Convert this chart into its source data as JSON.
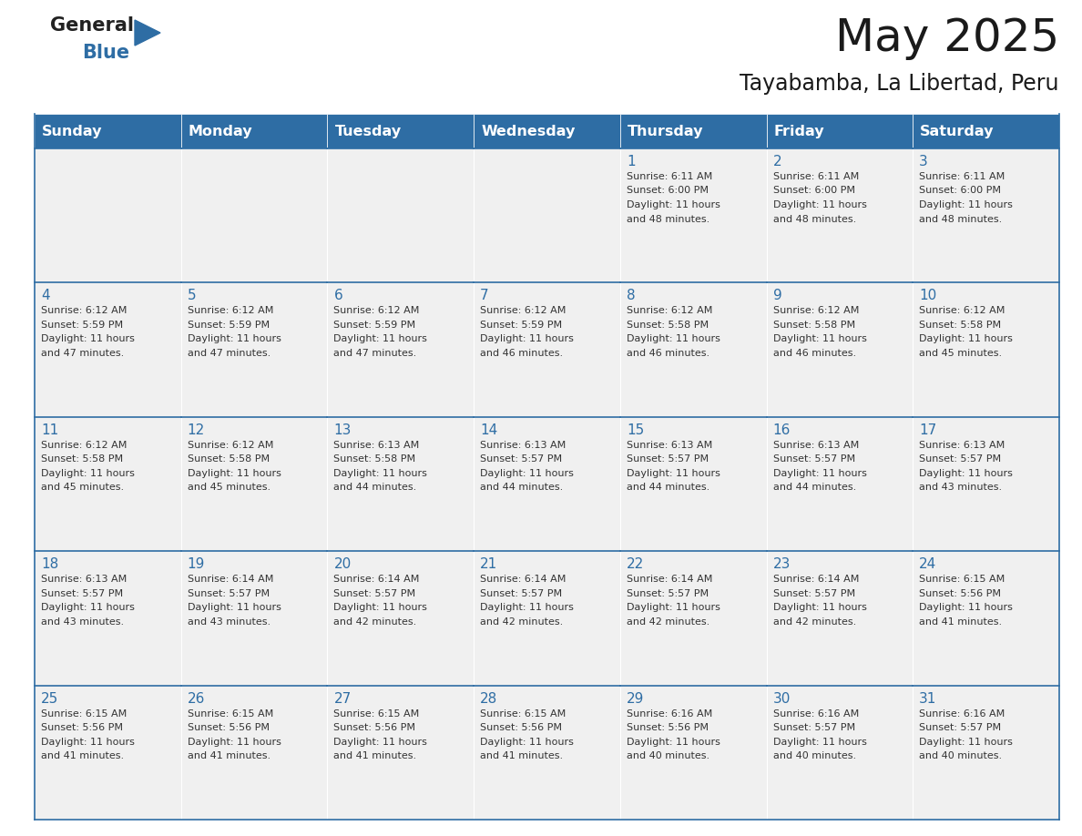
{
  "title": "May 2025",
  "subtitle": "Tayabamba, La Libertad, Peru",
  "header_bg_color": "#2E6DA4",
  "header_text_color": "#FFFFFF",
  "cell_bg_color": "#F0F0F0",
  "day_number_color": "#2E6DA4",
  "cell_text_color": "#333333",
  "grid_line_color": "#2E6DA4",
  "days_of_week": [
    "Sunday",
    "Monday",
    "Tuesday",
    "Wednesday",
    "Thursday",
    "Friday",
    "Saturday"
  ],
  "weeks": [
    [
      {
        "day": 0,
        "sunrise": "",
        "sunset": "",
        "daylight": ""
      },
      {
        "day": 0,
        "sunrise": "",
        "sunset": "",
        "daylight": ""
      },
      {
        "day": 0,
        "sunrise": "",
        "sunset": "",
        "daylight": ""
      },
      {
        "day": 0,
        "sunrise": "",
        "sunset": "",
        "daylight": ""
      },
      {
        "day": 1,
        "sunrise": "6:11 AM",
        "sunset": "6:00 PM",
        "daylight": "11 hours\nand 48 minutes."
      },
      {
        "day": 2,
        "sunrise": "6:11 AM",
        "sunset": "6:00 PM",
        "daylight": "11 hours\nand 48 minutes."
      },
      {
        "day": 3,
        "sunrise": "6:11 AM",
        "sunset": "6:00 PM",
        "daylight": "11 hours\nand 48 minutes."
      }
    ],
    [
      {
        "day": 4,
        "sunrise": "6:12 AM",
        "sunset": "5:59 PM",
        "daylight": "11 hours\nand 47 minutes."
      },
      {
        "day": 5,
        "sunrise": "6:12 AM",
        "sunset": "5:59 PM",
        "daylight": "11 hours\nand 47 minutes."
      },
      {
        "day": 6,
        "sunrise": "6:12 AM",
        "sunset": "5:59 PM",
        "daylight": "11 hours\nand 47 minutes."
      },
      {
        "day": 7,
        "sunrise": "6:12 AM",
        "sunset": "5:59 PM",
        "daylight": "11 hours\nand 46 minutes."
      },
      {
        "day": 8,
        "sunrise": "6:12 AM",
        "sunset": "5:58 PM",
        "daylight": "11 hours\nand 46 minutes."
      },
      {
        "day": 9,
        "sunrise": "6:12 AM",
        "sunset": "5:58 PM",
        "daylight": "11 hours\nand 46 minutes."
      },
      {
        "day": 10,
        "sunrise": "6:12 AM",
        "sunset": "5:58 PM",
        "daylight": "11 hours\nand 45 minutes."
      }
    ],
    [
      {
        "day": 11,
        "sunrise": "6:12 AM",
        "sunset": "5:58 PM",
        "daylight": "11 hours\nand 45 minutes."
      },
      {
        "day": 12,
        "sunrise": "6:12 AM",
        "sunset": "5:58 PM",
        "daylight": "11 hours\nand 45 minutes."
      },
      {
        "day": 13,
        "sunrise": "6:13 AM",
        "sunset": "5:58 PM",
        "daylight": "11 hours\nand 44 minutes."
      },
      {
        "day": 14,
        "sunrise": "6:13 AM",
        "sunset": "5:57 PM",
        "daylight": "11 hours\nand 44 minutes."
      },
      {
        "day": 15,
        "sunrise": "6:13 AM",
        "sunset": "5:57 PM",
        "daylight": "11 hours\nand 44 minutes."
      },
      {
        "day": 16,
        "sunrise": "6:13 AM",
        "sunset": "5:57 PM",
        "daylight": "11 hours\nand 44 minutes."
      },
      {
        "day": 17,
        "sunrise": "6:13 AM",
        "sunset": "5:57 PM",
        "daylight": "11 hours\nand 43 minutes."
      }
    ],
    [
      {
        "day": 18,
        "sunrise": "6:13 AM",
        "sunset": "5:57 PM",
        "daylight": "11 hours\nand 43 minutes."
      },
      {
        "day": 19,
        "sunrise": "6:14 AM",
        "sunset": "5:57 PM",
        "daylight": "11 hours\nand 43 minutes."
      },
      {
        "day": 20,
        "sunrise": "6:14 AM",
        "sunset": "5:57 PM",
        "daylight": "11 hours\nand 42 minutes."
      },
      {
        "day": 21,
        "sunrise": "6:14 AM",
        "sunset": "5:57 PM",
        "daylight": "11 hours\nand 42 minutes."
      },
      {
        "day": 22,
        "sunrise": "6:14 AM",
        "sunset": "5:57 PM",
        "daylight": "11 hours\nand 42 minutes."
      },
      {
        "day": 23,
        "sunrise": "6:14 AM",
        "sunset": "5:57 PM",
        "daylight": "11 hours\nand 42 minutes."
      },
      {
        "day": 24,
        "sunrise": "6:15 AM",
        "sunset": "5:56 PM",
        "daylight": "11 hours\nand 41 minutes."
      }
    ],
    [
      {
        "day": 25,
        "sunrise": "6:15 AM",
        "sunset": "5:56 PM",
        "daylight": "11 hours\nand 41 minutes."
      },
      {
        "day": 26,
        "sunrise": "6:15 AM",
        "sunset": "5:56 PM",
        "daylight": "11 hours\nand 41 minutes."
      },
      {
        "day": 27,
        "sunrise": "6:15 AM",
        "sunset": "5:56 PM",
        "daylight": "11 hours\nand 41 minutes."
      },
      {
        "day": 28,
        "sunrise": "6:15 AM",
        "sunset": "5:56 PM",
        "daylight": "11 hours\nand 41 minutes."
      },
      {
        "day": 29,
        "sunrise": "6:16 AM",
        "sunset": "5:56 PM",
        "daylight": "11 hours\nand 40 minutes."
      },
      {
        "day": 30,
        "sunrise": "6:16 AM",
        "sunset": "5:57 PM",
        "daylight": "11 hours\nand 40 minutes."
      },
      {
        "day": 31,
        "sunrise": "6:16 AM",
        "sunset": "5:57 PM",
        "daylight": "11 hours\nand 40 minutes."
      }
    ]
  ]
}
